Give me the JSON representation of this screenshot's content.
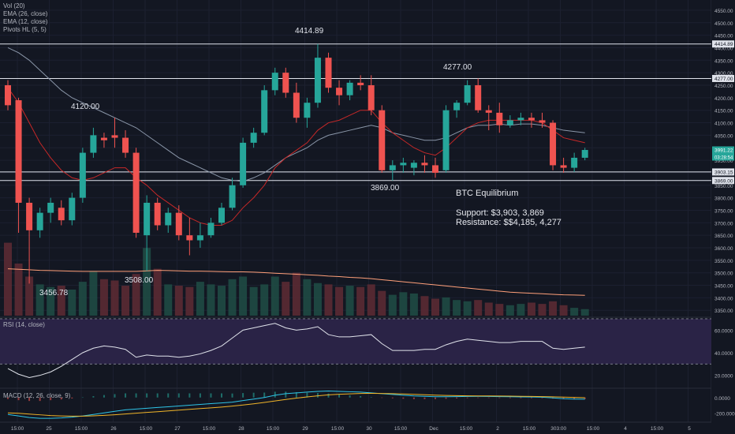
{
  "indicators": {
    "vol": "Vol (20)",
    "ema26": "EMA (26, close)",
    "ema12": "EMA (12, close)",
    "pivots": "Pivots HL (5, 5)",
    "rsi": "RSI (14, close)",
    "macd": "MACD (12, 26, close, 9)"
  },
  "annotations": {
    "high_4414": "4414.89",
    "high_4120": "4120.00",
    "high_4277": "4277.00",
    "low_3869": "3869.00",
    "low_3508": "3508.00",
    "low_3456": "3456.78"
  },
  "info_box": {
    "title": "BTC Equilibrium",
    "support": "Support: $3,903, 3,869",
    "resistance": "Resistance: $$4,185, 4,277"
  },
  "colors": {
    "background": "#131722",
    "up": "#26a69a",
    "down": "#ef5350",
    "rsi_band": "#2a2346",
    "ema26": "#8a96a8",
    "ema12": "#c62828",
    "macd_line": "#2ec5e8",
    "signal_line": "#f0b429",
    "volume_ma": "#ffa07a"
  },
  "chart_data": {
    "type": "candlestick",
    "price_axis_ticks": [
      "4550.00",
      "4500.00",
      "4450.00",
      "4400.00",
      "4350.00",
      "4300.00",
      "4250.00",
      "4200.00",
      "4150.00",
      "4100.00",
      "4050.00",
      "4000.00",
      "3950.00",
      "3900.00",
      "3850.00",
      "3800.00",
      "3750.00",
      "3700.00",
      "3650.00",
      "3600.00",
      "3550.00",
      "3500.00",
      "3450.00",
      "3400.00",
      "3350.00"
    ],
    "price_ylim": [
      3335,
      4575
    ],
    "horizontal_levels": [
      4414.89,
      4277.0,
      3903.15,
      3869.0
    ],
    "price_tags": [
      {
        "value": 4414.89,
        "label": "4414.89"
      },
      {
        "value": 4277.0,
        "label": "4277.00"
      },
      {
        "value": 3991.22,
        "label": "3991.22",
        "sublabel": "03:28:54"
      },
      {
        "value": 3903.15,
        "label": "3903.15"
      },
      {
        "value": 3869.0,
        "label": "3869.00"
      }
    ],
    "candles": [
      {
        "o": 4250,
        "h": 4270,
        "c": 4170,
        "l": 4150
      },
      {
        "o": 4190,
        "h": 4200,
        "c": 3780,
        "l": 3660
      },
      {
        "o": 3780,
        "h": 3800,
        "c": 3670,
        "l": 3456.78
      },
      {
        "o": 3670,
        "h": 3760,
        "c": 3740,
        "l": 3640
      },
      {
        "o": 3740,
        "h": 3800,
        "c": 3780,
        "l": 3700
      },
      {
        "o": 3760,
        "h": 3790,
        "c": 3710,
        "l": 3690
      },
      {
        "o": 3710,
        "h": 3820,
        "c": 3800,
        "l": 3690
      },
      {
        "o": 3800,
        "h": 4000,
        "c": 3980,
        "l": 3780
      },
      {
        "o": 3980,
        "h": 4080,
        "c": 4050,
        "l": 3960
      },
      {
        "o": 4040,
        "h": 4060,
        "c": 4030,
        "l": 4000
      },
      {
        "o": 4050,
        "h": 4120,
        "c": 4040,
        "l": 4000
      },
      {
        "o": 4040,
        "h": 4070,
        "c": 3980,
        "l": 3960
      },
      {
        "o": 3980,
        "h": 4000,
        "c": 3660,
        "l": 3640
      },
      {
        "o": 3650,
        "h": 3810,
        "c": 3780,
        "l": 3508
      },
      {
        "o": 3780,
        "h": 3800,
        "c": 3690,
        "l": 3670
      },
      {
        "o": 3690,
        "h": 3760,
        "c": 3740,
        "l": 3660
      },
      {
        "o": 3740,
        "h": 3770,
        "c": 3650,
        "l": 3630
      },
      {
        "o": 3650,
        "h": 3720,
        "c": 3630,
        "l": 3570
      },
      {
        "o": 3630,
        "h": 3700,
        "c": 3650,
        "l": 3600
      },
      {
        "o": 3650,
        "h": 3720,
        "c": 3700,
        "l": 3640
      },
      {
        "o": 3700,
        "h": 3780,
        "c": 3760,
        "l": 3690
      },
      {
        "o": 3760,
        "h": 3880,
        "c": 3850,
        "l": 3750
      },
      {
        "o": 3850,
        "h": 4040,
        "c": 4020,
        "l": 3840
      },
      {
        "o": 4020,
        "h": 4080,
        "c": 4060,
        "l": 4000
      },
      {
        "o": 4060,
        "h": 4250,
        "c": 4230,
        "l": 4050
      },
      {
        "o": 4230,
        "h": 4320,
        "c": 4300,
        "l": 4210
      },
      {
        "o": 4300,
        "h": 4320,
        "c": 4220,
        "l": 4200
      },
      {
        "o": 4220,
        "h": 4260,
        "c": 4120,
        "l": 4100
      },
      {
        "o": 4120,
        "h": 4200,
        "c": 4180,
        "l": 4080
      },
      {
        "o": 4180,
        "h": 4414.89,
        "c": 4360,
        "l": 4160
      },
      {
        "o": 4360,
        "h": 4380,
        "c": 4240,
        "l": 4220
      },
      {
        "o": 4240,
        "h": 4270,
        "c": 4210,
        "l": 4170
      },
      {
        "o": 4210,
        "h": 4270,
        "c": 4260,
        "l": 4190
      },
      {
        "o": 4260,
        "h": 4290,
        "c": 4250,
        "l": 4230
      },
      {
        "o": 4250,
        "h": 4290,
        "c": 4150,
        "l": 4130
      },
      {
        "o": 4150,
        "h": 4170,
        "c": 3910,
        "l": 3900
      },
      {
        "o": 3910,
        "h": 3950,
        "c": 3930,
        "l": 3869
      },
      {
        "o": 3930,
        "h": 3960,
        "c": 3940,
        "l": 3900
      },
      {
        "o": 3920,
        "h": 3950,
        "c": 3940,
        "l": 3890
      },
      {
        "o": 3940,
        "h": 3970,
        "c": 3930,
        "l": 3900
      },
      {
        "o": 3930,
        "h": 3960,
        "c": 3900,
        "l": 3880
      },
      {
        "o": 3910,
        "h": 4170,
        "c": 4150,
        "l": 3900
      },
      {
        "o": 4150,
        "h": 4190,
        "c": 4180,
        "l": 4120
      },
      {
        "o": 4180,
        "h": 4270,
        "c": 4250,
        "l": 4170
      },
      {
        "o": 4250,
        "h": 4277,
        "c": 4150,
        "l": 4140
      },
      {
        "o": 4150,
        "h": 4170,
        "c": 4140,
        "l": 4070
      },
      {
        "o": 4140,
        "h": 4180,
        "c": 4090,
        "l": 4060
      },
      {
        "o": 4090,
        "h": 4130,
        "c": 4110,
        "l": 4080
      },
      {
        "o": 4110,
        "h": 4140,
        "c": 4120,
        "l": 4090
      },
      {
        "o": 4120,
        "h": 4140,
        "c": 4110,
        "l": 4080
      },
      {
        "o": 4110,
        "h": 4140,
        "c": 4100,
        "l": 4080
      },
      {
        "o": 4100,
        "h": 4110,
        "c": 3930,
        "l": 3910
      },
      {
        "o": 3930,
        "h": 3960,
        "c": 3920,
        "l": 3900
      },
      {
        "o": 3920,
        "h": 3980,
        "c": 3960,
        "l": 3903
      },
      {
        "o": 3960,
        "h": 4000,
        "c": 3991.22,
        "l": 3950
      }
    ],
    "ema26": [
      4400,
      4380,
      4350,
      4310,
      4270,
      4230,
      4200,
      4180,
      4160,
      4140,
      4120,
      4100,
      4080,
      4050,
      4020,
      3990,
      3960,
      3940,
      3920,
      3900,
      3880,
      3870,
      3865,
      3880,
      3900,
      3930,
      3960,
      3980,
      4000,
      4030,
      4050,
      4060,
      4070,
      4080,
      4090,
      4080,
      4060,
      4050,
      4040,
      4030,
      4030,
      4040,
      4060,
      4080,
      4090,
      4090,
      4095,
      4090,
      4095,
      4095,
      4090,
      4080,
      4070,
      4065,
      4060
    ],
    "ema12": [
      4240,
      4180,
      4100,
      4020,
      3960,
      3910,
      3880,
      3870,
      3880,
      3900,
      3920,
      3920,
      3880,
      3850,
      3810,
      3780,
      3750,
      3720,
      3700,
      3690,
      3690,
      3710,
      3760,
      3800,
      3850,
      3920,
      3960,
      3990,
      4020,
      4070,
      4100,
      4110,
      4130,
      4150,
      4150,
      4100,
      4060,
      4030,
      4000,
      3980,
      3970,
      4000,
      4040,
      4080,
      4100,
      4110,
      4110,
      4110,
      4110,
      4110,
      4100,
      4070,
      4040,
      4030,
      4020
    ],
    "volume": [
      280,
      200,
      150,
      120,
      110,
      115,
      100,
      130,
      170,
      140,
      135,
      115,
      160,
      260,
      180,
      120,
      115,
      110,
      130,
      120,
      115,
      140,
      150,
      110,
      120,
      150,
      130,
      165,
      140,
      125,
      120,
      110,
      115,
      110,
      120,
      95,
      80,
      90,
      85,
      75,
      65,
      70,
      60,
      55,
      60,
      50,
      45,
      40,
      45,
      50,
      45,
      55,
      40,
      30,
      25
    ],
    "volume_ma": [
      180,
      178,
      176,
      174,
      173,
      172,
      171,
      170,
      170,
      170,
      170,
      170,
      170,
      172,
      174,
      173,
      172,
      171,
      171,
      170,
      169,
      168,
      168,
      167,
      165,
      163,
      161,
      159,
      157,
      155,
      152,
      150,
      147,
      145,
      142,
      138,
      134,
      130,
      126,
      122,
      118,
      114,
      110,
      106,
      102,
      98,
      94,
      90,
      88,
      86,
      84,
      82,
      80,
      79,
      78
    ],
    "rsi": {
      "ticks": [
        "60.0000",
        "40.0000",
        "20.0000"
      ],
      "overbought": 70,
      "oversold": 30,
      "values": [
        26,
        21,
        18,
        20,
        23,
        28,
        34,
        40,
        44,
        46,
        45,
        43,
        36,
        38,
        37,
        37,
        36,
        37,
        39,
        42,
        46,
        53,
        60,
        62,
        64,
        66,
        62,
        60,
        61,
        63,
        56,
        54,
        54,
        55,
        56,
        48,
        42,
        42,
        42,
        43,
        43,
        47,
        50,
        52,
        51,
        50,
        49,
        49,
        50,
        50,
        50,
        44,
        43,
        44,
        45
      ]
    },
    "macd": {
      "ticks": [
        "0.0000",
        "-200.0000"
      ],
      "macd_line": [
        -220,
        -240,
        -260,
        -270,
        -270,
        -265,
        -255,
        -240,
        -220,
        -200,
        -180,
        -160,
        -150,
        -140,
        -130,
        -120,
        -110,
        -100,
        -90,
        -80,
        -70,
        -60,
        -40,
        -20,
        0,
        30,
        50,
        60,
        70,
        80,
        85,
        80,
        75,
        70,
        60,
        50,
        40,
        30,
        20,
        15,
        10,
        10,
        12,
        14,
        15,
        14,
        12,
        10,
        8,
        6,
        4,
        -5,
        -15,
        -20,
        -22
      ],
      "signal_line": [
        -200,
        -205,
        -215,
        -225,
        -235,
        -240,
        -242,
        -242,
        -238,
        -232,
        -224,
        -214,
        -204,
        -194,
        -184,
        -174,
        -164,
        -154,
        -144,
        -134,
        -124,
        -112,
        -98,
        -82,
        -64,
        -45,
        -26,
        -8,
        8,
        22,
        34,
        42,
        48,
        52,
        54,
        53,
        50,
        46,
        41,
        36,
        31,
        27,
        24,
        22,
        21,
        20,
        19,
        18,
        16,
        14,
        12,
        9,
        5,
        1,
        -2
      ]
    },
    "time_axis": [
      "15:00",
      "25",
      "15:00",
      "26",
      "15:00",
      "27",
      "15:00",
      "28",
      "15:00",
      "29",
      "15:00",
      "30",
      "15:00",
      "Dec",
      "15:00",
      "2",
      "15:00",
      "3",
      "03:00",
      "15:00",
      "4",
      "15:00",
      "5"
    ]
  }
}
